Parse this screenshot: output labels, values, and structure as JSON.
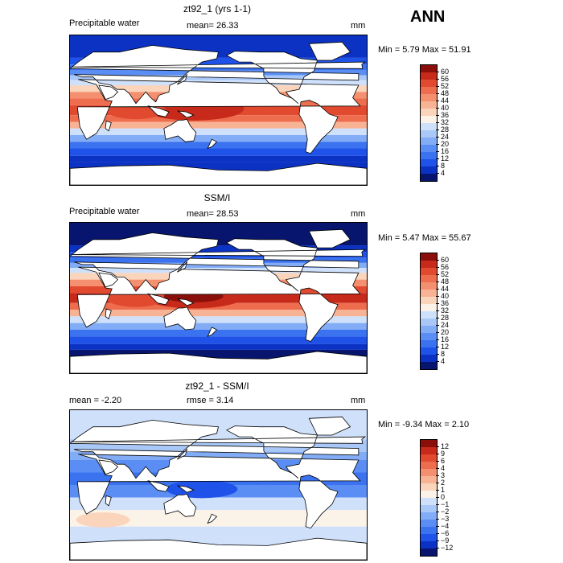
{
  "season": "ANN",
  "palette_abs": [
    "#08156e",
    "#0c32c4",
    "#1f52e8",
    "#3a72f0",
    "#5a8ef4",
    "#82acf6",
    "#a9c8f8",
    "#cfe0fb",
    "#fbf2e8",
    "#fbd4bc",
    "#f8b294",
    "#f4906f",
    "#ee6d4e",
    "#e24a30",
    "#c72a1a",
    "#8a0f0a"
  ],
  "palette_diff": [
    "#08156e",
    "#0c32c4",
    "#1f52e8",
    "#3a72f0",
    "#5a8ef4",
    "#82acf6",
    "#a9c8f8",
    "#cfe0fb",
    "#fbf2e8",
    "#fbd4bc",
    "#f8b294",
    "#f4906f",
    "#ee6d4e",
    "#e24a30",
    "#c72a1a",
    "#8a0f0a"
  ],
  "panels": [
    {
      "id": "model",
      "title": "zt92_1 (yrs 1-1)",
      "left_text": "Precipitable water",
      "mid_text": "mean=  26.33",
      "units": "mm",
      "stats": "Min =    5.79  Max =   51.91",
      "levels": [
        "60",
        "56",
        "52",
        "48",
        "44",
        "40",
        "36",
        "32",
        "28",
        "24",
        "20",
        "16",
        "12",
        "8",
        "4"
      ]
    },
    {
      "id": "obs",
      "title": "SSM/I",
      "left_text": "Precipitable water",
      "mid_text": "mean=  28.53",
      "units": "mm",
      "stats": "Min =    5.47  Max =   55.67",
      "levels": [
        "60",
        "56",
        "52",
        "48",
        "44",
        "40",
        "36",
        "32",
        "28",
        "24",
        "20",
        "16",
        "12",
        "8",
        "4"
      ]
    },
    {
      "id": "diff",
      "title": "zt92_1 - SSM/I",
      "left_text": "mean =   -2.20",
      "mid_text": "rmse =    3.14",
      "units": "mm",
      "stats": "Min =  -9.34  Max =    2.10",
      "levels": [
        "12",
        "9",
        "6",
        "4",
        "3",
        "2",
        "1",
        "0",
        "−1",
        "−2",
        "−3",
        "−4",
        "−6",
        "−9",
        "−12"
      ]
    }
  ]
}
